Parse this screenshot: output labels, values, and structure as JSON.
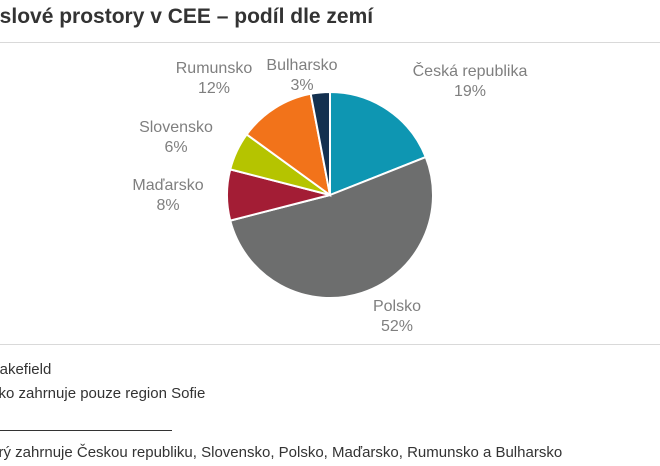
{
  "header": {
    "title": "yslové prostory v CEE – podíl dle zemí"
  },
  "chart_data": {
    "type": "pie",
    "title": "yslové prostory v CEE – podíl dle zemí",
    "start_angle_deg": 0,
    "direction": "clockwise",
    "slices": [
      {
        "label": "Česká republika",
        "value": 19,
        "value_label": "19%",
        "color": "#0e96b2"
      },
      {
        "label": "Polsko",
        "value": 52,
        "value_label": "52%",
        "color": "#6d6e6e"
      },
      {
        "label": "Maďarsko",
        "value": 8,
        "value_label": "8%",
        "color": "#a31d35"
      },
      {
        "label": "Slovensko",
        "value": 6,
        "value_label": "6%",
        "color": "#b5c400"
      },
      {
        "label": "Rumunsko",
        "value": 12,
        "value_label": "12%",
        "color": "#f2731a"
      },
      {
        "label": "Bulharsko",
        "value": 3,
        "value_label": "3%",
        "color": "#13304f"
      }
    ]
  },
  "notes": {
    "source": "Wakefield",
    "bulgaria": "rsko zahrnuje pouze region Sofie",
    "footnote": "terý zahrnuje Českou republiku, Slovensko, Polsko, Maďarsko, Rumunsko a Bulharsko"
  }
}
